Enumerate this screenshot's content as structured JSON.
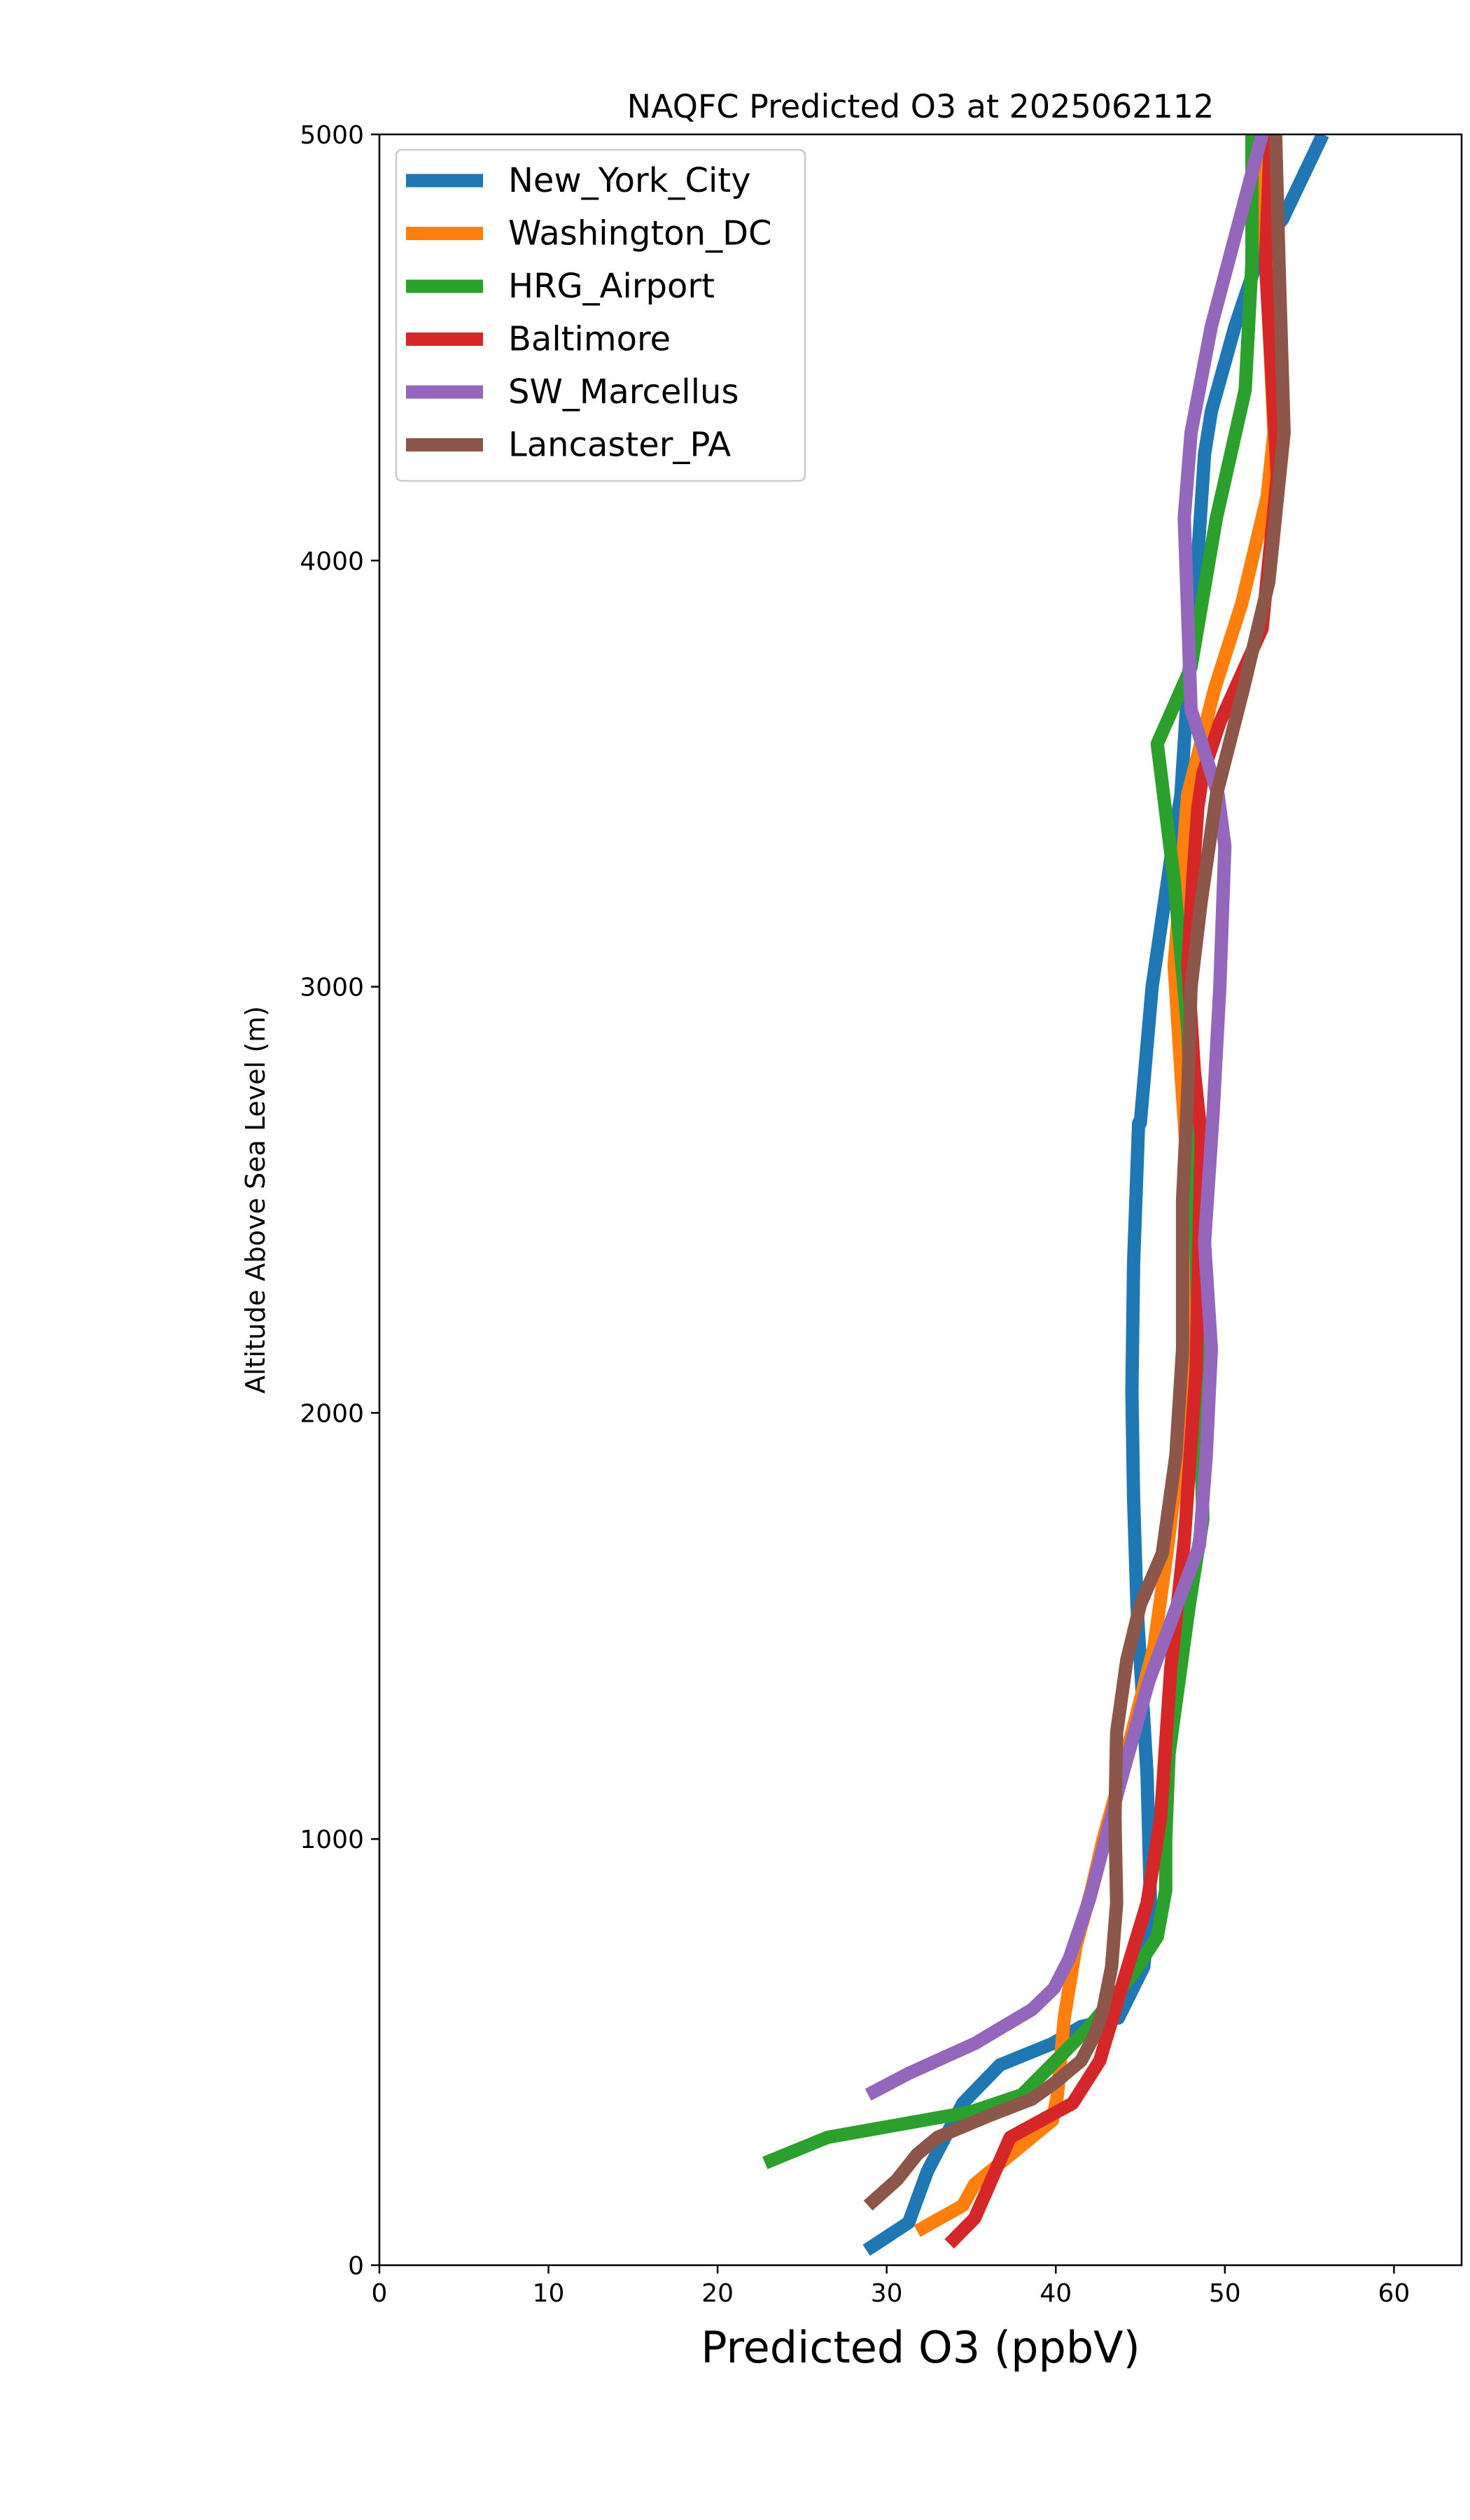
{
  "chart_data": {
    "type": "line",
    "title": "NAQFC Predicted O3 at 2025062112",
    "xlabel": "Predicted O3 (ppbV)",
    "ylabel": "Altitude Above Sea Level (m)",
    "xlim": [
      0,
      64
    ],
    "ylim": [
      0,
      5000
    ],
    "xticks": [
      0,
      10,
      20,
      30,
      40,
      50,
      60
    ],
    "yticks": [
      0,
      1000,
      2000,
      3000,
      4000,
      5000
    ],
    "grid": false,
    "legend_position": "upper-left",
    "series": [
      {
        "name": "New_York_City",
        "color": "#1f77b4",
        "x": [
          28.8,
          31.3,
          32.4,
          34.5,
          36.7,
          39.8,
          41.5,
          43.7,
          45.2,
          45.6,
          45.4,
          44.8,
          44.6,
          44.5,
          44.6,
          44.9,
          45.0,
          45.0,
          45.7,
          46.8,
          47.4,
          47.8,
          48.3,
          48.8,
          49.2,
          50.6,
          52.3,
          53.4,
          55.8
        ],
        "y": [
          35,
          100,
          220,
          380,
          470,
          520,
          560,
          580,
          700,
          850,
          1150,
          1550,
          1800,
          2050,
          2350,
          2680,
          2680,
          2680,
          3000,
          3300,
          3450,
          3700,
          3950,
          4250,
          4350,
          4550,
          4750,
          4800,
          5000
        ]
      },
      {
        "name": "Washington_DC",
        "color": "#ff7f0e",
        "x": [
          31.8,
          34.5,
          35.2,
          39.8,
          40.1,
          40.5,
          41.2,
          42.1,
          42.8,
          43.5,
          44.5,
          45.8,
          46.5,
          47.3,
          47.8,
          47.9,
          47.4,
          47.0,
          47.8,
          49.4,
          51.0,
          52.5,
          52.9,
          52.1
        ],
        "y": [
          80,
          140,
          190,
          340,
          400,
          580,
          750,
          880,
          1000,
          1100,
          1250,
          1450,
          1650,
          1900,
          2150,
          2500,
          2800,
          3050,
          3450,
          3700,
          3900,
          4150,
          4300,
          5000
        ]
      },
      {
        "name": "HRG_Airport",
        "color": "#2ca02c",
        "x": [
          22.8,
          26.5,
          35.0,
          38.0,
          40.0,
          42.0,
          44.5,
          46.0,
          46.5,
          46.5,
          46.7,
          47.9,
          48.7,
          48.5,
          48.2,
          47.8,
          47.0,
          46.0,
          48.0,
          49.5,
          51.2,
          51.6,
          51.6
        ],
        "y": [
          240,
          300,
          360,
          400,
          480,
          560,
          680,
          770,
          880,
          1000,
          1200,
          1550,
          1750,
          2050,
          2550,
          2900,
          3250,
          3570,
          3750,
          4100,
          4400,
          4700,
          5000
        ]
      },
      {
        "name": "Baltimore",
        "color": "#d62728",
        "x": [
          33.7,
          35.2,
          37.3,
          41.0,
          42.6,
          43.8,
          45.4,
          46.2,
          46.8,
          47.6,
          48.3,
          48.6,
          48.2,
          47.8,
          48.1,
          48.4,
          48.7,
          49.7,
          52.2,
          53.1,
          52.4,
          52.7
        ],
        "y": [
          50,
          110,
          300,
          380,
          480,
          640,
          850,
          1050,
          1400,
          1700,
          2100,
          2650,
          2800,
          3050,
          3250,
          3420,
          3500,
          3620,
          3840,
          4200,
          4700,
          5000
        ]
      },
      {
        "name": "SW_Marcellus",
        "color": "#9467bd",
        "x": [
          28.9,
          31.3,
          35.2,
          38.6,
          39.9,
          40.8,
          42.0,
          43.8,
          45.5,
          47.0,
          48.5,
          48.9,
          49.2,
          48.8,
          49.3,
          49.7,
          50.0,
          49.6,
          48.0,
          47.6,
          48.0,
          49.2,
          52.2
        ],
        "y": [
          400,
          450,
          520,
          600,
          650,
          720,
          860,
          1130,
          1370,
          1530,
          1690,
          1900,
          2150,
          2400,
          2700,
          3000,
          3330,
          3450,
          3650,
          4100,
          4300,
          4550,
          5000
        ]
      },
      {
        "name": "Lancaster_PA",
        "color": "#8c564b",
        "x": [
          28.9,
          30.6,
          31.8,
          33.0,
          36.0,
          38.6,
          40.0,
          41.5,
          42.3,
          42.8,
          43.3,
          43.6,
          43.5,
          43.6,
          44.2,
          45.0,
          46.3,
          47.1,
          47.5,
          47.5,
          47.8,
          48.0,
          48.6,
          49.5,
          51.1,
          52.6,
          53.5,
          53.2,
          53.0
        ],
        "y": [
          140,
          200,
          260,
          300,
          350,
          390,
          430,
          480,
          540,
          600,
          700,
          850,
          1050,
          1250,
          1420,
          1550,
          1670,
          1900,
          2150,
          2500,
          2750,
          3000,
          3200,
          3450,
          3700,
          3950,
          4300,
          4700,
          5000
        ]
      }
    ]
  }
}
